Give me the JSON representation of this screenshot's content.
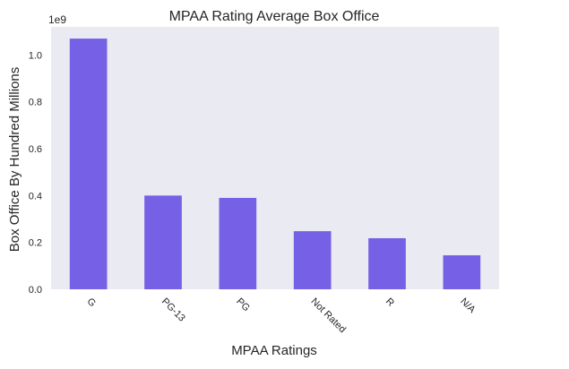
{
  "chart_data": {
    "type": "bar",
    "title": "MPAA Rating Average Box Office",
    "xlabel": "MPAA Ratings",
    "ylabel": "Box Office By Hundred Millions",
    "y_offset_label": "1e9",
    "categories": [
      "G",
      "PG-13",
      "PG",
      "Not Rated",
      "R",
      "N/A"
    ],
    "values": [
      1070000000,
      400000000,
      390000000,
      248000000,
      218000000,
      145000000
    ],
    "ylim": [
      0,
      1120000000
    ],
    "yticks": [
      0.0,
      0.2,
      0.4,
      0.6,
      0.8,
      1.0
    ],
    "ytick_labels": [
      "0.0",
      "0.2",
      "0.4",
      "0.6",
      "0.8",
      "1.0"
    ],
    "ytick_scale": 1000000000,
    "grid": false,
    "legend": "none",
    "x_tick_rotation": "-45deg",
    "colors": {
      "bar": "#7560e6",
      "plot_background": "#eaeaf2",
      "text": "#262626"
    }
  }
}
